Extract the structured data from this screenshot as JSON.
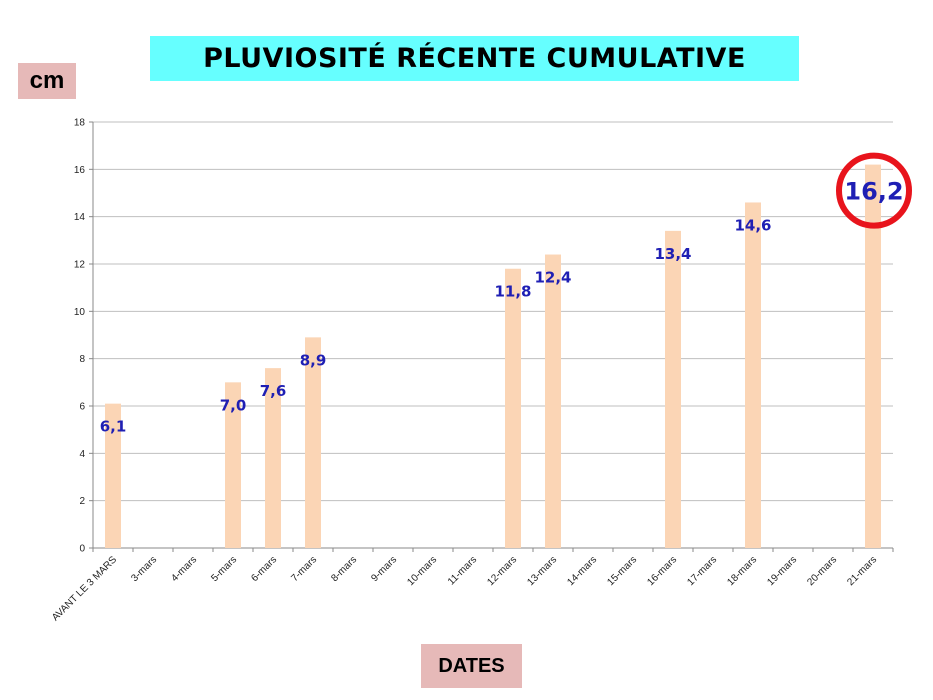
{
  "title": "PLUVIOSITÉ RÉCENTE CUMULATIVE",
  "ylabel": "cm",
  "xlabel": "DATES",
  "colors": {
    "bar": "#fbd5b5",
    "label": "#1f1fb4",
    "highlight": "#e8141c",
    "title_bg": "#66ffff",
    "axis_label_bg": "#e6b9b8",
    "grid": "#bfbfbf"
  },
  "chart_data": {
    "type": "bar",
    "title": "PLUVIOSITÉ RÉCENTE CUMULATIVE",
    "xlabel": "DATES",
    "ylabel": "cm",
    "ylim": [
      0,
      18
    ],
    "yticks": [
      0,
      2,
      4,
      6,
      8,
      10,
      12,
      14,
      16,
      18
    ],
    "grid": true,
    "categories": [
      "AVANT LE 3 MARS",
      "3-mars",
      "4-mars",
      "5-mars",
      "6-mars",
      "7-mars",
      "8-mars",
      "9-mars",
      "10-mars",
      "11-mars",
      "12-mars",
      "13-mars",
      "14-mars",
      "15-mars",
      "16-mars",
      "17-mars",
      "18-mars",
      "19-mars",
      "20-mars",
      "21-mars"
    ],
    "values": [
      6.1,
      null,
      null,
      7.0,
      7.6,
      8.9,
      null,
      null,
      null,
      null,
      11.8,
      12.4,
      null,
      null,
      13.4,
      null,
      14.6,
      null,
      null,
      16.2
    ],
    "data_labels": [
      "6,1",
      "",
      "",
      "7,0",
      "7,6",
      "8,9",
      "",
      "",
      "",
      "",
      "11,8",
      "12,4",
      "",
      "",
      "13,4",
      "",
      "14,6",
      "",
      "",
      "16,2"
    ],
    "highlighted_index": 19
  }
}
